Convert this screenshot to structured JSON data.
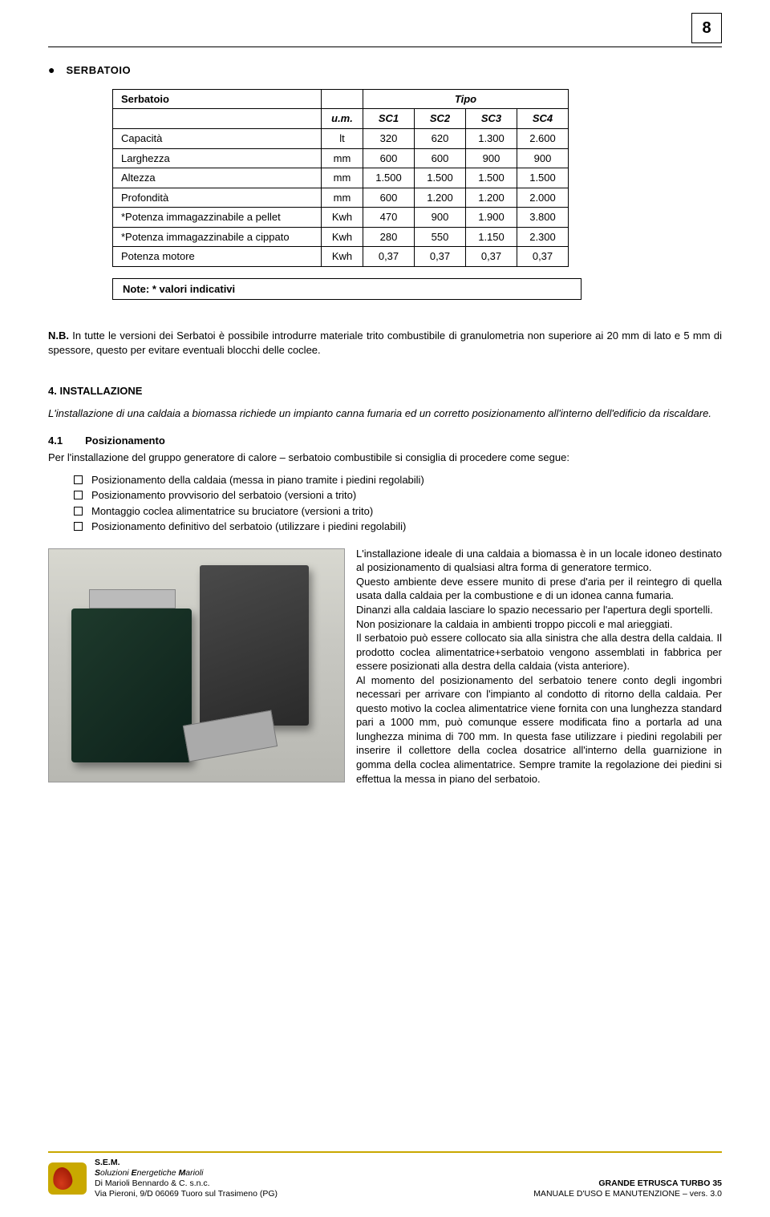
{
  "page_number": "8",
  "section": {
    "title": "SERBATOIO"
  },
  "table": {
    "header_left": "Serbatoio",
    "header_right": "Tipo",
    "um_header": "u.m.",
    "cols": [
      "SC1",
      "SC2",
      "SC3",
      "SC4"
    ],
    "rows": [
      {
        "label": "Capacità",
        "um": "lt",
        "vals": [
          "320",
          "620",
          "1.300",
          "2.600"
        ]
      },
      {
        "label": "Larghezza",
        "um": "mm",
        "vals": [
          "600",
          "600",
          "900",
          "900"
        ]
      },
      {
        "label": "Altezza",
        "um": "mm",
        "vals": [
          "1.500",
          "1.500",
          "1.500",
          "1.500"
        ]
      },
      {
        "label": "Profondità",
        "um": "mm",
        "vals": [
          "600",
          "1.200",
          "1.200",
          "2.000"
        ]
      },
      {
        "label": "*Potenza immagazzinabile a pellet",
        "um": "Kwh",
        "vals": [
          "470",
          "900",
          "1.900",
          "3.800"
        ]
      },
      {
        "label": "*Potenza immagazzinabile a cippato",
        "um": "Kwh",
        "vals": [
          "280",
          "550",
          "1.150",
          "2.300"
        ]
      },
      {
        "label": "Potenza motore",
        "um": "Kwh",
        "vals": [
          "0,37",
          "0,37",
          "0,37",
          "0,37"
        ]
      }
    ]
  },
  "note_box": "Note: * valori indicativi",
  "nb_label": "N.B.",
  "nb_text": " In tutte le versioni dei Serbatoi è possibile introdurre materiale trito combustibile di granulometria non superiore ai 20 mm di lato e 5 mm di spessore, questo per evitare eventuali blocchi delle coclee.",
  "install": {
    "heading": "4. INSTALLAZIONE",
    "intro": "L'installazione di una caldaia a biomassa richiede un impianto canna fumaria ed un corretto posizionamento all'interno dell'edificio da riscaldare.",
    "sub_num": "4.1",
    "sub_label": "Posizionamento",
    "sub_intro": "Per l'installazione del gruppo generatore di calore – serbatoio combustibile si consiglia di procedere come segue:",
    "checklist": [
      "Posizionamento della caldaia (messa in piano tramite i piedini regolabili)",
      "Posizionamento provvisorio del serbatoio (versioni a trito)",
      "Montaggio coclea alimentatrice su bruciatore (versioni a trito)",
      "Posizionamento definitivo del serbatoio (utilizzare i piedini regolabili)"
    ],
    "wrap_text": "L'installazione ideale di una caldaia a biomassa è in un locale idoneo destinato al posizionamento di qualsiasi altra forma di generatore termico.\nQuesto ambiente deve essere munito di prese d'aria per il reintegro di quella usata dalla caldaia per la combustione e di un idonea canna fumaria.\nDinanzi alla caldaia lasciare lo spazio necessario per l'apertura degli sportelli.\nNon posizionare la caldaia in ambienti troppo piccoli e mal arieggiati.\nIl serbatoio può essere collocato sia alla sinistra che alla destra della caldaia. Il prodotto coclea alimentatrice+serbatoio vengono assemblati in fabbrica per essere posizionati alla destra della caldaia (vista anteriore).\nAl momento del posizionamento del serbatoio tenere conto degli ingombri necessari per arrivare con l'impianto al condotto di ritorno della caldaia. Per questo motivo la coclea alimentatrice viene fornita con una lunghezza standard pari a 1000 mm, può comunque essere modificata fino a portarla ad una lunghezza minima di 700 mm. In questa fase utilizzare i piedini regolabili per inserire il collettore della coclea dosatrice all'interno della guarnizione in gomma della coclea alimentatrice. Sempre tramite la regolazione dei piedini si effettua la messa in piano del serbatoio."
  },
  "footer": {
    "left": {
      "l1": "S.E.M.",
      "l2": "Soluzioni Energetiche Marioli",
      "l3": "Di Marioli Bennardo & C. s.n.c.",
      "l4": "Via Pieroni, 9/D 06069 Tuoro sul Trasimeno (PG)"
    },
    "right": {
      "l1": "GRANDE ETRUSCA TURBO 35",
      "l2": "MANUALE D'USO E MANUTENZIONE – vers. 3.0"
    }
  }
}
